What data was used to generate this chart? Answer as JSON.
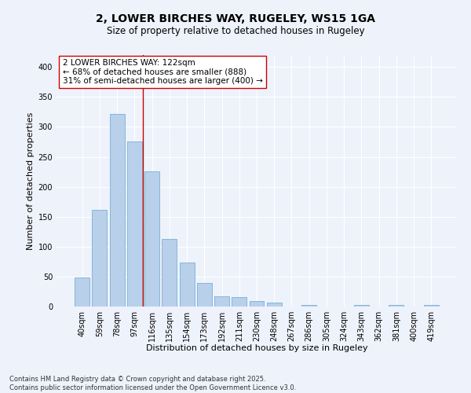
{
  "title": "2, LOWER BIRCHES WAY, RUGELEY, WS15 1GA",
  "subtitle": "Size of property relative to detached houses in Rugeley",
  "xlabel": "Distribution of detached houses by size in Rugeley",
  "ylabel": "Number of detached properties",
  "footer_line1": "Contains HM Land Registry data © Crown copyright and database right 2025.",
  "footer_line2": "Contains public sector information licensed under the Open Government Licence v3.0.",
  "categories": [
    "40sqm",
    "59sqm",
    "78sqm",
    "97sqm",
    "116sqm",
    "135sqm",
    "154sqm",
    "173sqm",
    "192sqm",
    "211sqm",
    "230sqm",
    "248sqm",
    "267sqm",
    "286sqm",
    "305sqm",
    "324sqm",
    "343sqm",
    "362sqm",
    "381sqm",
    "400sqm",
    "419sqm"
  ],
  "values": [
    48,
    162,
    322,
    276,
    226,
    113,
    74,
    40,
    17,
    16,
    9,
    6,
    0,
    3,
    0,
    0,
    3,
    0,
    2,
    0,
    2
  ],
  "bar_color": "#b8d0ea",
  "bar_edge_color": "#7aafd4",
  "red_line_index": 4,
  "annotation_text": "2 LOWER BIRCHES WAY: 122sqm\n← 68% of detached houses are smaller (888)\n31% of semi-detached houses are larger (400) →",
  "ylim": [
    0,
    420
  ],
  "yticks": [
    0,
    50,
    100,
    150,
    200,
    250,
    300,
    350,
    400
  ],
  "background_color": "#eef2fb",
  "grid_color": "#ffffff",
  "title_fontsize": 10,
  "subtitle_fontsize": 8.5,
  "axis_label_fontsize": 8,
  "tick_fontsize": 7,
  "annotation_fontsize": 7.5,
  "footer_fontsize": 6
}
